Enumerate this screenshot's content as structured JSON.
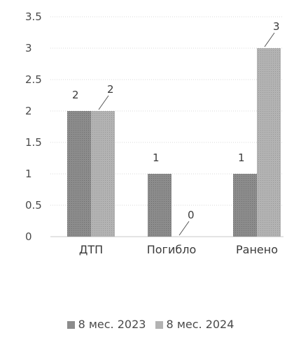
{
  "chart_data": {
    "type": "bar",
    "categories": [
      "ДТП",
      "Погибло",
      "Ранено"
    ],
    "series": [
      {
        "name": "8 мес. 2023",
        "values": [
          2,
          1,
          1
        ],
        "color": "#8c8c8c"
      },
      {
        "name": "8 мес. 2024",
        "values": [
          2,
          0,
          3
        ],
        "color": "#b3b3b3"
      }
    ],
    "ylim": [
      0,
      3.5
    ],
    "yticks": [
      "0",
      "0.5",
      "1",
      "1.5",
      "2",
      "2.5",
      "3",
      "3.5"
    ],
    "grid": true,
    "legend_position": "bottom"
  }
}
